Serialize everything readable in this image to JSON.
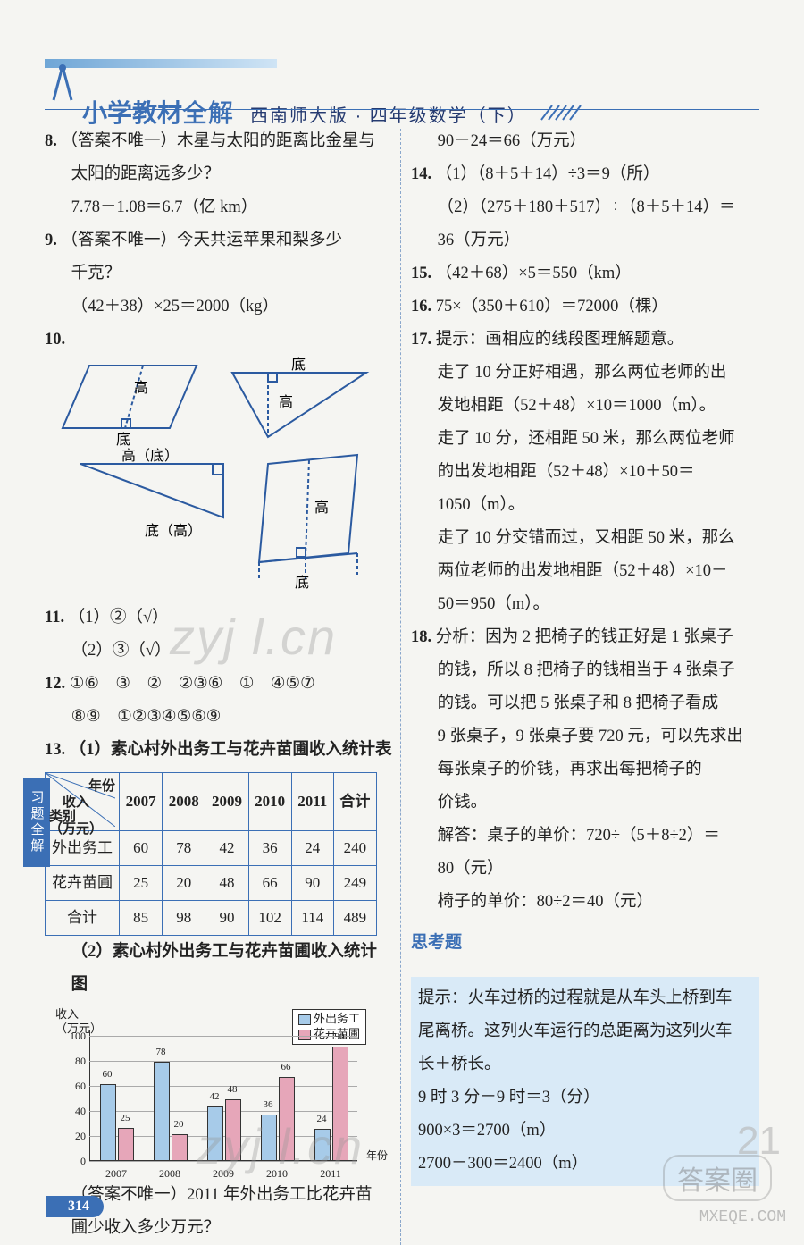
{
  "header": {
    "series": "小学教材",
    "series_bold": "全解",
    "edition": "西南师大版 · 四年级数学（下）"
  },
  "side_tab": "习题全解",
  "page_number": "314",
  "left": {
    "q8_line1": "（答案不唯一）木星与太阳的距离比金星与",
    "q8_line2": "太阳的距离远多少？",
    "q8_eq": "7.78－1.08＝6.7（亿 km）",
    "q9_line1": "（答案不唯一）今天共运苹果和梨多少",
    "q9_line2": "千克？",
    "q9_eq": "（42＋38）×25＝2000（kg）",
    "q10_labels": {
      "gao": "高",
      "di": "底",
      "gaodi": "高（底）",
      "digao": "底（高）"
    },
    "q11_1": "（1）②（√）",
    "q11_2": "（2）③（√）",
    "q12_line1": "①⑥　③　②　②③⑥　①　④⑤⑦",
    "q12_line2": "⑧⑨　①②③④⑤⑥⑨",
    "q13_1_title": "（1）素心村外出务工与花卉苗圃收入统计表",
    "table13": {
      "diag": {
        "top": "年份",
        "mid": "（万元）",
        "left_top": "收入",
        "bottom": "类别"
      },
      "years": [
        "2007",
        "2008",
        "2009",
        "2010",
        "2011",
        "合计"
      ],
      "rows": [
        {
          "label": "外出务工",
          "cells": [
            "60",
            "78",
            "42",
            "36",
            "24",
            "240"
          ]
        },
        {
          "label": "花卉苗圃",
          "cells": [
            "25",
            "20",
            "48",
            "66",
            "90",
            "249"
          ]
        },
        {
          "label": "合计",
          "cells": [
            "85",
            "98",
            "90",
            "102",
            "114",
            "489"
          ]
        }
      ]
    },
    "q13_2_title": "（2）素心村外出务工与花卉苗圃收入统计图",
    "chart": {
      "ylabel1": "收入",
      "ylabel2": "（万元）",
      "xlabel": "年份",
      "legend": {
        "a": "外出务工",
        "b": "花卉苗圃"
      },
      "ymax": 100,
      "yticks": [
        0,
        20,
        40,
        60,
        80,
        100
      ],
      "categories": [
        "2007",
        "2008",
        "2009",
        "2010",
        "2011"
      ],
      "series_a": [
        60,
        78,
        42,
        36,
        24
      ],
      "series_b": [
        25,
        20,
        48,
        66,
        90
      ],
      "colors": {
        "a": "#a7cbe9",
        "b": "#e6a6b9",
        "grid": "#aaaaaa"
      }
    },
    "q13_tail1": "（答案不唯一）2011 年外出务工比花卉苗",
    "q13_tail2": "圃少收入多少万元？"
  },
  "right": {
    "r_top": "90－24＝66（万元）",
    "q14_1": "（1）（8＋5＋14）÷3＝9（所）",
    "q14_2a": "（2）（275＋180＋517）÷（8＋5＋14）＝",
    "q14_2b": "36（万元）",
    "q15": "（42＋68）×5＝550（km）",
    "q16": "75×（350＋610）＝72000（棵）",
    "q17_hint": "提示：画相应的线段图理解题意。",
    "q17_a1": "走了 10 分正好相遇，那么两位老师的出",
    "q17_a2": "发地相距（52＋48）×10＝1000（m）。",
    "q17_b1": "走了 10 分，还相距 50 米，那么两位老师",
    "q17_b2": "的出发地相距（52＋48）×10＋50＝",
    "q17_b3": "1050（m）。",
    "q17_c1": "走了 10 分交错而过，又相距 50 米，那么",
    "q17_c2": "两位老师的出发地相距（52＋48）×10－",
    "q17_c3": "50＝950（m）。",
    "q18_a1": "分析：因为 2 把椅子的钱正好是 1 张桌子",
    "q18_a2": "的钱，所以 8 把椅子的钱相当于 4 张桌子",
    "q18_a3": "的钱。可以把 5 张桌子和 8 把椅子看成",
    "q18_a4": "9 张桌子，9 张桌子要 720 元，可以先求出",
    "q18_a5": "每张桌子的价钱，再求出每把椅子的",
    "q18_a6": "价钱。",
    "q18_s1": "解答：桌子的单价：720÷（5＋8÷2）＝",
    "q18_s2": "80（元）",
    "q18_s3": "椅子的单价：80÷2＝40（元）",
    "think": "思考题",
    "hint1": "提示：火车过桥的过程就是从车头上桥到车",
    "hint2": "尾离桥。这列火车运行的总距离为这列火车",
    "hint3": "长＋桥长。",
    "hint4": "9 时 3 分－9 时＝3（分）",
    "hint5": "900×3＝2700（m）",
    "hint6": "2700－300＝2400（m）"
  },
  "watermarks": {
    "wm1": "zyj l.cn",
    "wm2": "zyj l.cn",
    "badge": "21",
    "logo": "答案圈",
    "mxeqe": "MXEQE.COM"
  }
}
